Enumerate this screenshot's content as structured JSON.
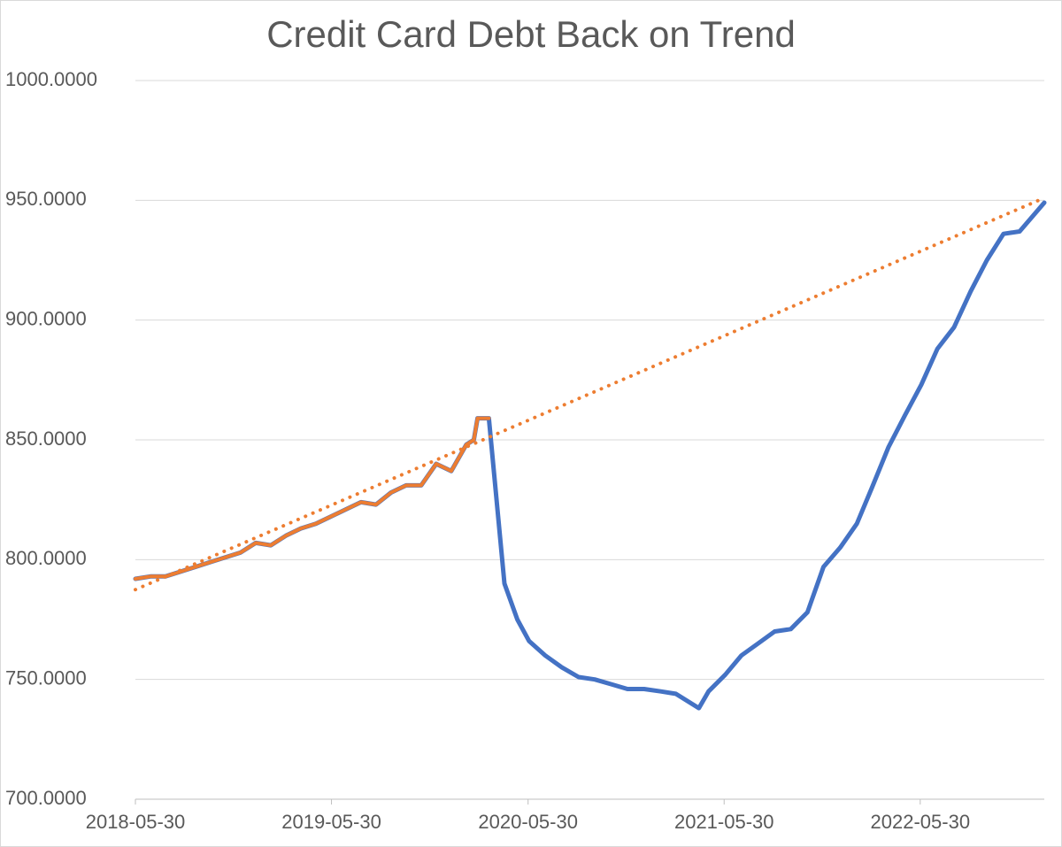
{
  "chart_data": {
    "type": "line",
    "title": "Credit Card Debt Back on Trend",
    "x": [
      "2018-05-30",
      "2018-06-27",
      "2018-07-25",
      "2018-08-22",
      "2018-09-19",
      "2018-10-17",
      "2018-11-14",
      "2018-12-12",
      "2019-01-09",
      "2019-02-06",
      "2019-03-06",
      "2019-04-03",
      "2019-05-01",
      "2019-05-29",
      "2019-06-26",
      "2019-07-24",
      "2019-08-21",
      "2019-09-18",
      "2019-10-16",
      "2019-11-13",
      "2019-12-11",
      "2020-01-08",
      "2020-02-05",
      "2020-02-19",
      "2020-02-26",
      "2020-03-18",
      "2020-04-16",
      "2020-05-10",
      "2020-06-01",
      "2020-07-01",
      "2020-08-01",
      "2020-09-01",
      "2020-10-01",
      "2020-11-01",
      "2020-12-01",
      "2021-01-01",
      "2021-02-01",
      "2021-03-01",
      "2021-04-13",
      "2021-05-01",
      "2021-06-01",
      "2021-07-01",
      "2021-08-01",
      "2021-09-01",
      "2021-10-01",
      "2021-11-01",
      "2021-12-01",
      "2022-01-01",
      "2022-02-01",
      "2022-03-01",
      "2022-04-01",
      "2022-05-01",
      "2022-06-01",
      "2022-07-01",
      "2022-08-01",
      "2022-09-01",
      "2022-10-01",
      "2022-11-01",
      "2022-12-01",
      "2023-01-16"
    ],
    "series": [
      {
        "color": "#4472c4",
        "values": [
          792,
          793,
          793,
          795,
          797,
          799,
          801,
          803,
          807,
          806,
          810,
          813,
          815,
          818,
          821,
          824,
          823,
          828,
          831,
          831,
          840,
          837,
          848,
          850,
          859,
          859,
          790,
          775,
          766,
          760,
          755,
          751,
          750,
          748,
          746,
          746,
          745,
          744,
          738,
          745,
          752,
          760,
          765,
          770,
          771,
          778,
          797,
          805,
          815,
          830,
          847,
          860,
          873,
          888,
          897,
          912,
          925,
          936,
          937,
          949
        ]
      },
      {
        "color": "#ed7d31",
        "values": [
          792,
          793,
          793,
          795,
          797,
          799,
          801,
          803,
          807,
          806,
          810,
          813,
          815,
          818,
          821,
          824,
          823,
          828,
          831,
          831,
          840,
          837,
          848,
          850,
          859,
          859,
          null,
          null,
          null,
          null,
          null,
          null,
          null,
          null,
          null,
          null,
          null,
          null,
          null,
          null,
          null,
          null,
          null,
          null,
          null,
          null,
          null,
          null,
          null,
          null,
          null,
          null,
          null,
          null,
          null,
          null,
          null,
          null,
          null,
          null
        ]
      },
      {
        "color": "#ed7d31",
        "style": "dotted",
        "x": [
          "2018-05-30",
          "2023-01-16"
        ],
        "values": [
          787.5,
          951
        ]
      }
    ],
    "xlim": [
      "2018-05-30",
      "2023-01-16"
    ],
    "xticks": [
      "2018-05-30",
      "2019-05-30",
      "2020-05-30",
      "2021-05-30",
      "2022-05-30"
    ],
    "ylim": [
      700,
      1000
    ],
    "yticks": [
      {
        "value": 700,
        "label": "700.0000"
      },
      {
        "value": 750,
        "label": "750.0000"
      },
      {
        "value": 800,
        "label": "800.0000"
      },
      {
        "value": 850,
        "label": "850.0000"
      },
      {
        "value": 900,
        "label": "900.0000"
      },
      {
        "value": 950,
        "label": "950.0000"
      },
      {
        "value": 1000,
        "label": "1000.0000"
      }
    ],
    "grid": true
  }
}
